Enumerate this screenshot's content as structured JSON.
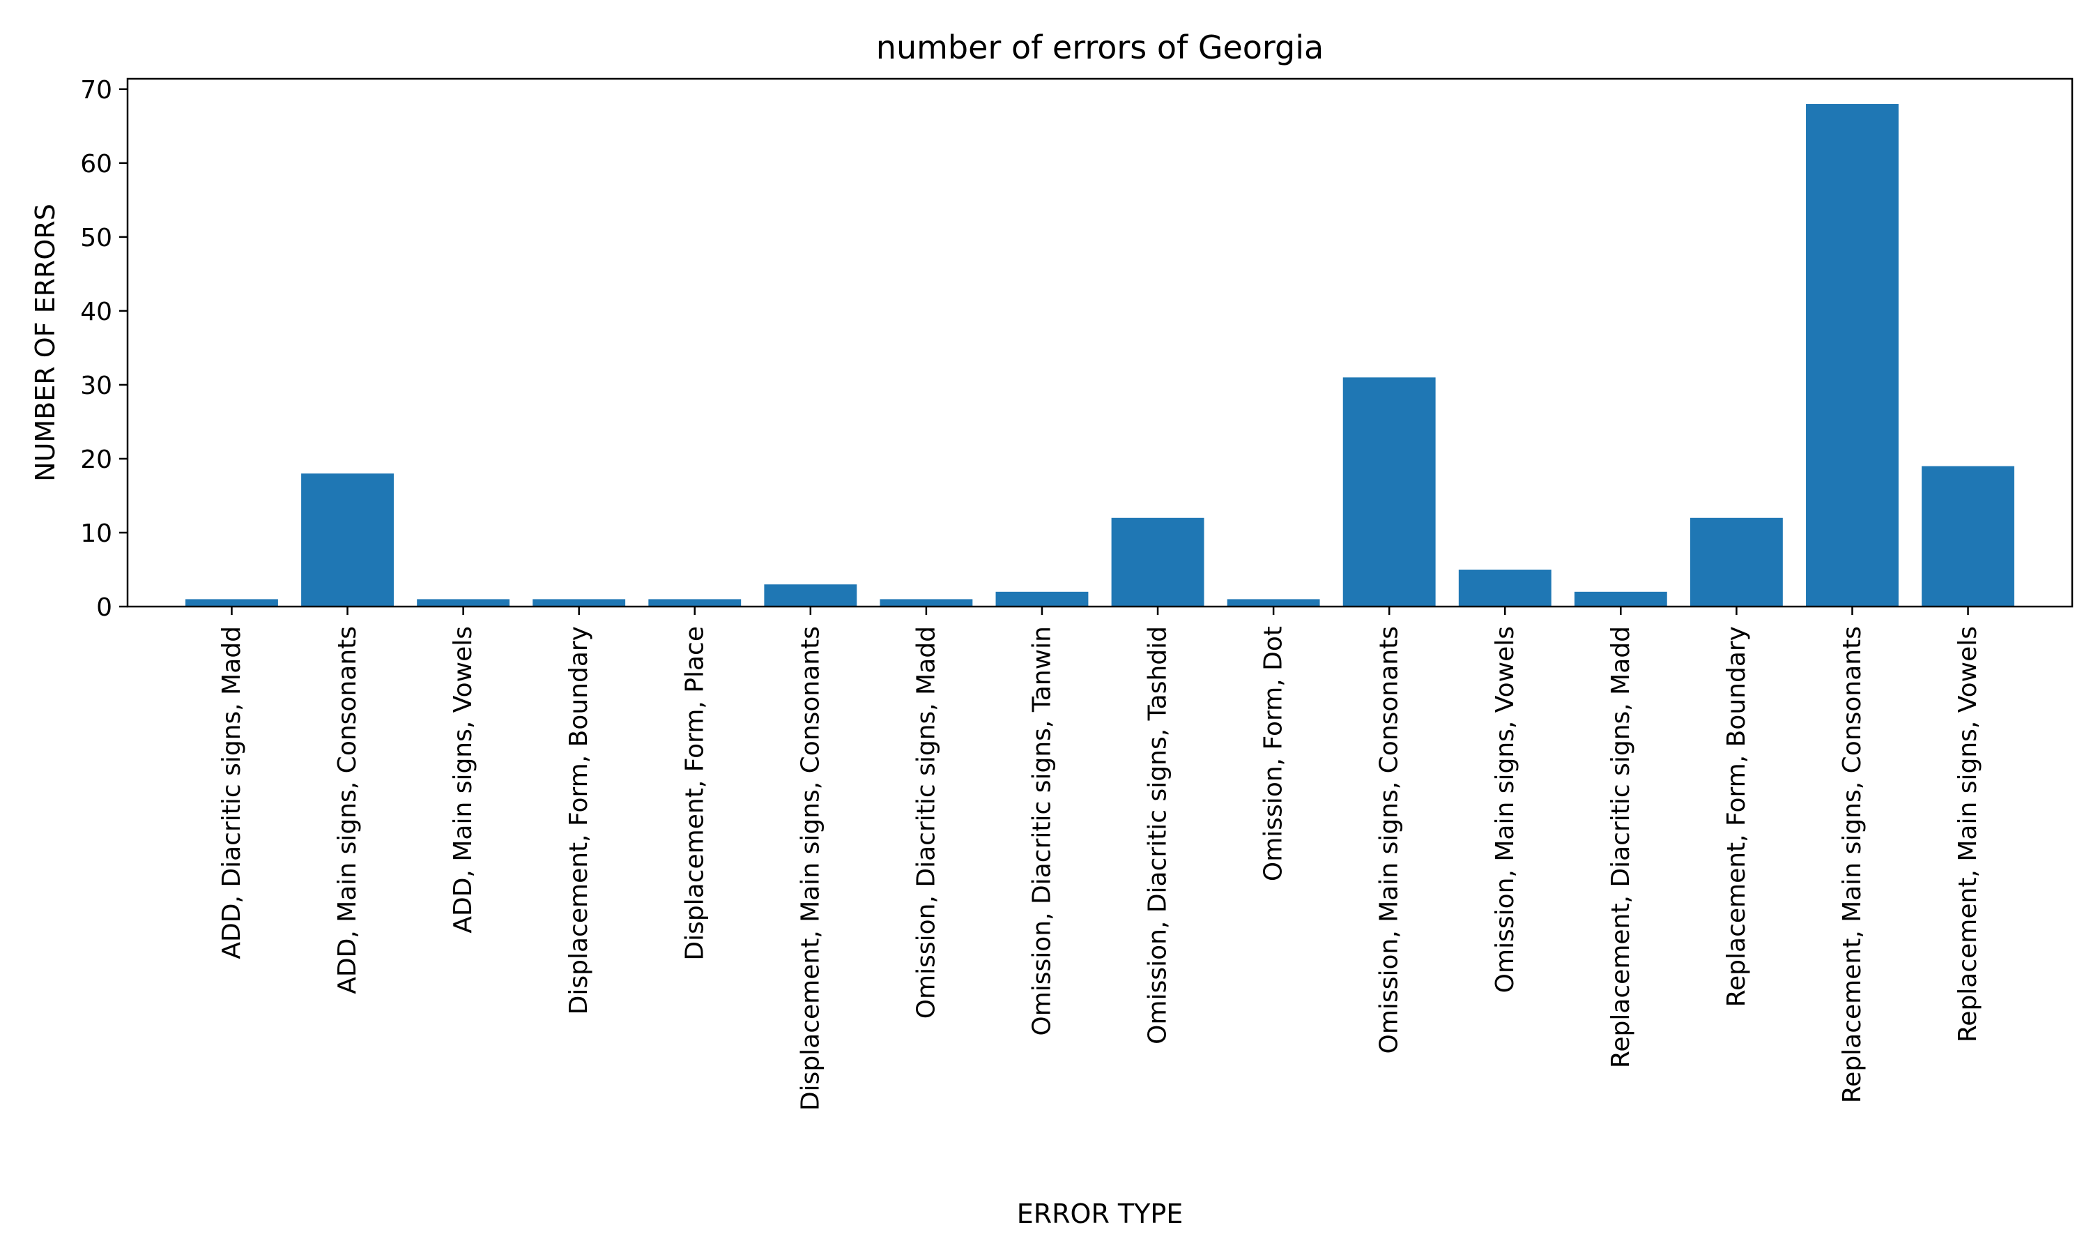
{
  "chart_data": {
    "type": "bar",
    "title": "number of errors of Georgia",
    "xlabel": "ERROR TYPE",
    "ylabel": "NUMBER OF ERRORS",
    "categories": [
      "ADD, Diacritic signs, Madd",
      "ADD, Main signs, Consonants",
      "ADD, Main signs, Vowels",
      "Displacement, Form, Boundary",
      "Displacement, Form, Place",
      "Displacement, Main signs, Consonants",
      "Omission, Diacritic signs, Madd",
      "Omission, Diacritic signs, Tanwin",
      "Omission, Diacritic signs, Tashdid",
      "Omission, Form, Dot",
      "Omission, Main signs, Consonants",
      "Omission, Main signs, Vowels",
      "Replacement, Diacritic signs, Madd",
      "Replacement, Form, Boundary",
      "Replacement, Main signs, Consonants",
      "Replacement, Main signs, Vowels"
    ],
    "values": [
      1,
      18,
      1,
      1,
      1,
      3,
      1,
      2,
      12,
      1,
      31,
      5,
      2,
      12,
      68,
      19
    ],
    "ylim": [
      0,
      71.4
    ],
    "yticks": [
      0,
      10,
      20,
      30,
      40,
      50,
      60,
      70
    ],
    "grid": false,
    "legend": "none",
    "bar_color": "#1f77b4"
  }
}
